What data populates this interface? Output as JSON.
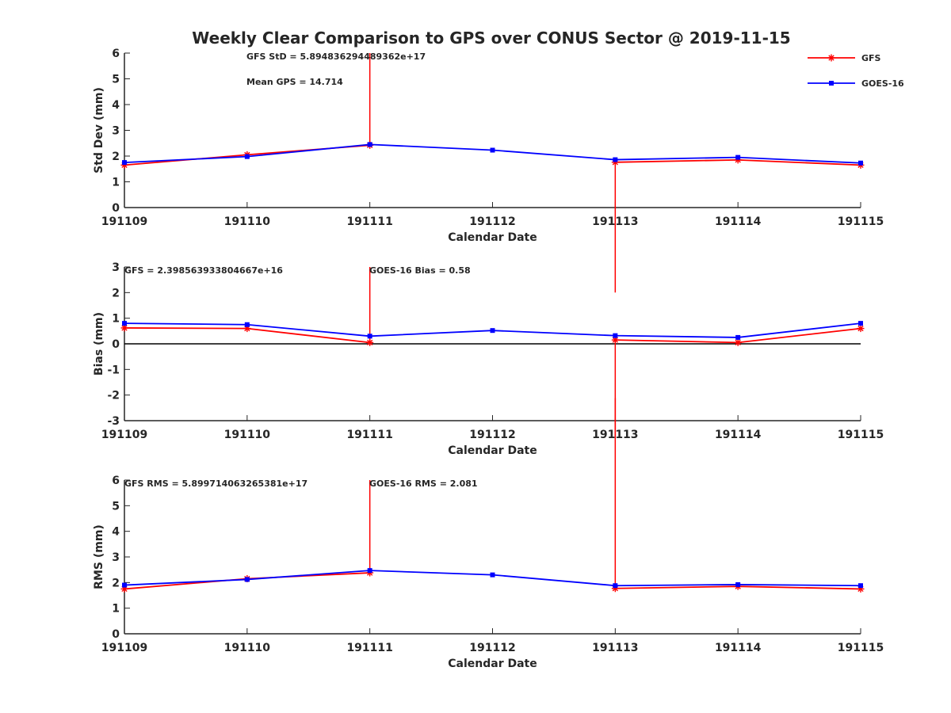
{
  "title": "Weekly Clear Comparison to GPS over CONUS Sector @ 2019-11-15",
  "colors": {
    "gfs": "#ff0000",
    "goes": "#0000ff",
    "axis": "#262626",
    "zero_line": "#000000"
  },
  "legend": {
    "placement": "top-right",
    "entries": [
      {
        "label": "GFS",
        "marker": "asterisk",
        "color": "#ff0000"
      },
      {
        "label": "GOES-16",
        "marker": "square",
        "color": "#0000ff"
      }
    ]
  },
  "chart_data": [
    {
      "type": "line",
      "categories": [
        "191109",
        "191110",
        "191111",
        "191112",
        "191113",
        "191114",
        "191115"
      ],
      "xlabel": "Calendar Date",
      "ylabel": "Std Dev (mm)",
      "ylim": [
        0,
        6
      ],
      "yticks": [
        "0",
        "1",
        "2",
        "3",
        "4",
        "5",
        "6"
      ],
      "grid": false,
      "zero_line": false,
      "annotations": [
        "GFS StD = 5.894836294489362e+17",
        "Mean GPS = 14.714"
      ],
      "series": [
        {
          "name": "GFS",
          "values": [
            1.65,
            2.05,
            2.42,
            null,
            1.76,
            1.85,
            1.65
          ],
          "spikes": [
            {
              "index": 2,
              "to": 6
            },
            {
              "index": 4,
              "to": -3.3
            }
          ]
        },
        {
          "name": "GOES-16",
          "values": [
            1.75,
            1.98,
            2.45,
            2.23,
            1.86,
            1.95,
            1.73
          ]
        }
      ]
    },
    {
      "type": "line",
      "categories": [
        "191109",
        "191110",
        "191111",
        "191112",
        "191113",
        "191114",
        "191115"
      ],
      "xlabel": "Calendar Date",
      "ylabel": "Bias (mm)",
      "ylim": [
        -3,
        3
      ],
      "yticks": [
        "-3",
        "-2",
        "-1",
        "0",
        "1",
        "2",
        "3"
      ],
      "grid": false,
      "zero_line": true,
      "annotations": [
        "GFS = 2.398563933804667e+16",
        "GOES-16 Bias  = 0.58"
      ],
      "series": [
        {
          "name": "GFS",
          "values": [
            0.62,
            0.6,
            0.05,
            null,
            0.15,
            0.05,
            0.6
          ],
          "spikes": [
            {
              "index": 2,
              "to": 3
            },
            {
              "index": 4,
              "to": -3.6
            }
          ]
        },
        {
          "name": "GOES-16",
          "values": [
            0.8,
            0.75,
            0.3,
            0.52,
            0.32,
            0.25,
            0.8
          ]
        }
      ]
    },
    {
      "type": "line",
      "categories": [
        "191109",
        "191110",
        "191111",
        "191112",
        "191113",
        "191114",
        "191115"
      ],
      "xlabel": "Calendar Date",
      "ylabel": "RMS (mm)",
      "ylim": [
        0,
        6
      ],
      "yticks": [
        "0",
        "1",
        "2",
        "3",
        "4",
        "5",
        "6"
      ],
      "grid": false,
      "zero_line": false,
      "annotations": [
        "GFS RMS = 5.899714063265381e+17",
        "GOES-16 RMS = 2.081"
      ],
      "series": [
        {
          "name": "GFS",
          "values": [
            1.75,
            2.15,
            2.38,
            null,
            1.77,
            1.85,
            1.75
          ],
          "spikes": [
            {
              "index": 2,
              "to": 6
            },
            {
              "index": 4,
              "to": 9.2
            }
          ]
        },
        {
          "name": "GOES-16",
          "values": [
            1.9,
            2.12,
            2.47,
            2.3,
            1.88,
            1.92,
            1.88
          ]
        }
      ]
    }
  ]
}
